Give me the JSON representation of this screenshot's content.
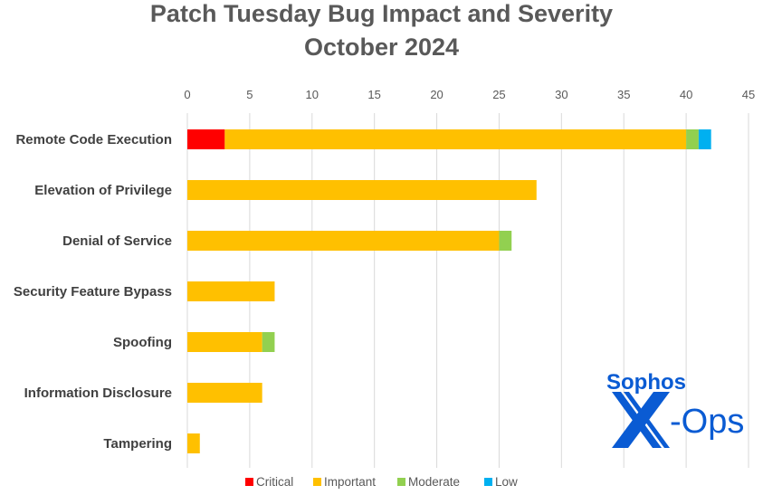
{
  "chart_data": {
    "type": "bar",
    "orientation": "horizontal",
    "stacked": true,
    "title": "Patch Tuesday Bug Impact and Severity",
    "subtitle": "October 2024",
    "xlabel": "",
    "ylabel": "",
    "xlim": [
      0,
      45
    ],
    "x_ticks": [
      0,
      5,
      10,
      15,
      20,
      25,
      30,
      35,
      40,
      45
    ],
    "grid": true,
    "legend_position": "bottom",
    "categories": [
      "Remote Code Execution",
      "Elevation of Privilege",
      "Denial of Service",
      "Security Feature Bypass",
      "Spoofing",
      "Information Disclosure",
      "Tampering"
    ],
    "series": [
      {
        "name": "Critical",
        "color": "#ff0000",
        "values": [
          3,
          0,
          0,
          0,
          0,
          0,
          0
        ]
      },
      {
        "name": "Important",
        "color": "#ffc000",
        "values": [
          37,
          28,
          25,
          7,
          6,
          6,
          1
        ]
      },
      {
        "name": "Moderate",
        "color": "#92d050",
        "values": [
          1,
          0,
          1,
          0,
          1,
          0,
          0
        ]
      },
      {
        "name": "Low",
        "color": "#00b0f0",
        "values": [
          1,
          0,
          0,
          0,
          0,
          0,
          0
        ]
      }
    ]
  },
  "logo": {
    "line1": "Sophos",
    "line2": "X-Ops",
    "color": "#0a5bd3"
  }
}
